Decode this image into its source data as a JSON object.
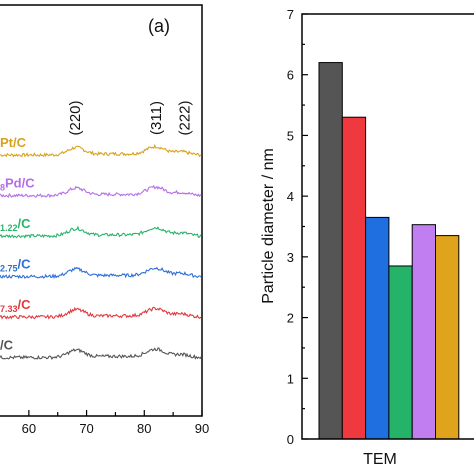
{
  "chart_data": [
    {
      "type": "line",
      "panel_label": "(a)",
      "x_ticks": [
        "60",
        "70",
        "80",
        "90"
      ],
      "xlim": [
        55,
        90
      ],
      "peak_labels": [
        {
          "text": "(220)",
          "x": 68
        },
        {
          "text": "(311)",
          "x": 82
        },
        {
          "text": "(222)",
          "x": 87
        }
      ],
      "series": [
        {
          "label_main": "Pt/C",
          "label_sub": "",
          "color": "#d9a21b",
          "offset": 0
        },
        {
          "label_main": "Pd/C",
          "label_sub": "8",
          "color": "#b46ee6",
          "offset": 1
        },
        {
          "label_main": "/C",
          "label_sub": "1.22",
          "color": "#2ab36b",
          "offset": 2
        },
        {
          "label_main": "/C",
          "label_sub": "2.75",
          "color": "#2d6fd8",
          "offset": 3
        },
        {
          "label_main": "/C",
          "label_sub": "7.33",
          "color": "#e03a3e",
          "offset": 4
        },
        {
          "label_main": "/C",
          "label_sub": "",
          "color": "#555555",
          "offset": 5
        }
      ]
    },
    {
      "type": "bar",
      "ylabel": "Particle diameter / nm",
      "xlabel": "TEM",
      "ylim": [
        0,
        7
      ],
      "y_ticks": [
        "0",
        "1",
        "2",
        "3",
        "4",
        "5",
        "6",
        "7"
      ],
      "bars": [
        {
          "value": 6.2,
          "color": "#555555"
        },
        {
          "value": 5.3,
          "color": "#f0393f"
        },
        {
          "value": 3.65,
          "color": "#1f6fe0"
        },
        {
          "value": 2.85,
          "color": "#25b36a"
        },
        {
          "value": 3.53,
          "color": "#c07ef0"
        },
        {
          "value": 3.35,
          "color": "#e0a31c"
        }
      ]
    }
  ]
}
